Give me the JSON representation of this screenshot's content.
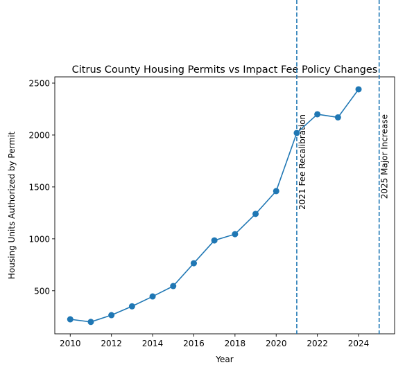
{
  "colors": {
    "series": "#1f77b4",
    "axis": "#000000",
    "background": "#ffffff"
  },
  "chart_data": {
    "type": "line",
    "title": "Citrus County Housing Permits vs Impact Fee Policy Changes",
    "xlabel": "Year",
    "ylabel": "Housing Units Authorized by Permit",
    "xlim": [
      2009.25,
      2025.75
    ],
    "ylim": [
      85,
      2560
    ],
    "xticks": [
      2010,
      2012,
      2014,
      2016,
      2018,
      2020,
      2022,
      2024
    ],
    "yticks": [
      500,
      1000,
      1500,
      2000,
      2500
    ],
    "grid": false,
    "legend": "none",
    "series": [
      {
        "marker": "circle",
        "x": [
          2010,
          2011,
          2012,
          2013,
          2014,
          2015,
          2016,
          2017,
          2018,
          2019,
          2020,
          2021,
          2022,
          2023,
          2024
        ],
        "y": [
          225,
          200,
          265,
          350,
          445,
          545,
          765,
          985,
          1045,
          1240,
          1460,
          2020,
          2200,
          2170,
          2440
        ]
      }
    ],
    "annotations": [
      {
        "x": 2021,
        "label": "2021 Fee Recalibration",
        "style": "dashed vertical line"
      },
      {
        "x": 2025,
        "label": "2025 Major Increase",
        "style": "dashed vertical line"
      }
    ]
  }
}
